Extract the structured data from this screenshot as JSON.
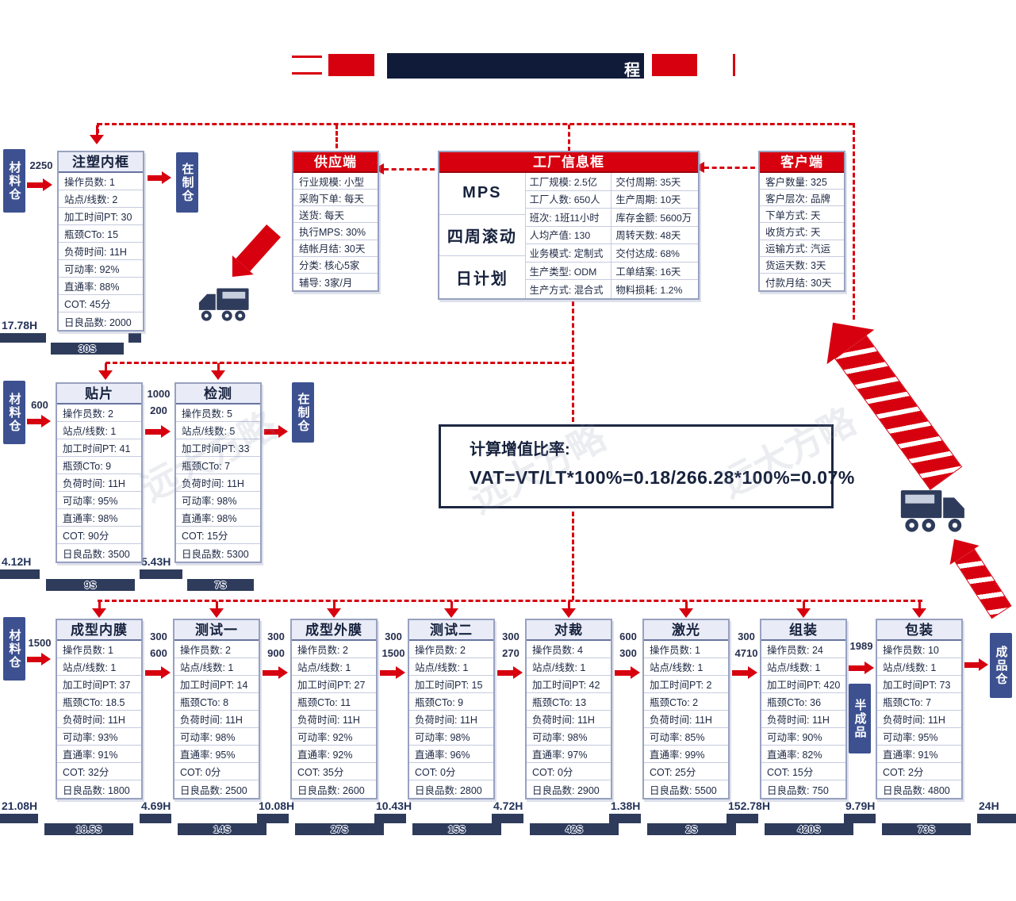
{
  "header": {
    "title_fragment": "程"
  },
  "watermark": "远大方略",
  "labels": {
    "material_store": "材料仓",
    "wip_store": "在制仓",
    "semi_finished": "半成品",
    "finished_store": "成品仓"
  },
  "supplier": {
    "title": "供应端",
    "rows": [
      "行业规模: 小型",
      "采购下单: 每天",
      "送货: 每天",
      "执行MPS: 30%",
      "结帐月结: 30天",
      "分类: 核心5家",
      "辅导: 3家/月"
    ]
  },
  "factory": {
    "title": "工厂信息框",
    "plan_cells": [
      "MPS",
      "四周滚动",
      "日计划"
    ],
    "col1": [
      "工厂规模: 2.5亿",
      "工厂人数: 650人",
      "班次: 1班11小时",
      "人均产值: 130",
      "业务模式: 定制式",
      "生产类型: ODM",
      "生产方式: 混合式"
    ],
    "col2": [
      "交付周期: 35天",
      "生产周期: 10天",
      "库存金额: 5600万",
      "周转天数: 48天",
      "交付达成: 68%",
      "工单结案: 16天",
      "物料损耗: 1.2%"
    ]
  },
  "customer": {
    "title": "客户端",
    "rows": [
      "客户数量: 325",
      "客户层次: 品牌",
      "下单方式: 天",
      "收货方式: 天",
      "运输方式: 汽运",
      "货运天数: 3天",
      "付款月结: 30天"
    ]
  },
  "processes": [
    {
      "key": "injection-inner-frame",
      "title": "注塑内框",
      "rows": [
        "操作员数: 1",
        "站点/线数: 2",
        "加工时间PT: 30",
        "瓶颈CTo: 15",
        "负荷时间: 11H",
        "可动率: 92%",
        "直通率: 88%",
        "COT: 45分",
        "日良品数: 2000"
      ]
    },
    {
      "key": "smt",
      "title": "贴片",
      "rows": [
        "操作员数: 2",
        "站点/线数: 1",
        "加工时间PT: 41",
        "瓶颈CTo: 9",
        "负荷时间: 11H",
        "可动率: 95%",
        "直通率: 98%",
        "COT: 90分",
        "日良品数: 3500"
      ]
    },
    {
      "key": "inspection",
      "title": "检测",
      "rows": [
        "操作员数: 5",
        "站点/线数: 5",
        "加工时间PT: 33",
        "瓶颈CTo: 7",
        "负荷时间: 11H",
        "可动率: 98%",
        "直通率: 98%",
        "COT: 15分",
        "日良品数: 5300"
      ]
    },
    {
      "key": "inner-molding",
      "title": "成型内膜",
      "rows": [
        "操作员数: 1",
        "站点/线数: 1",
        "加工时间PT: 37",
        "瓶颈CTo: 18.5",
        "负荷时间: 11H",
        "可动率: 93%",
        "直通率: 91%",
        "COT: 32分",
        "日良品数: 1800"
      ]
    },
    {
      "key": "test-1",
      "title": "测试一",
      "rows": [
        "操作员数: 2",
        "站点/线数: 1",
        "加工时间PT: 14",
        "瓶颈CTo: 8",
        "负荷时间: 11H",
        "可动率: 98%",
        "直通率: 95%",
        "COT: 0分",
        "日良品数: 2500"
      ]
    },
    {
      "key": "outer-molding",
      "title": "成型外膜",
      "rows": [
        "操作员数: 2",
        "站点/线数: 1",
        "加工时间PT: 27",
        "瓶颈CTo: 11",
        "负荷时间: 11H",
        "可动率: 92%",
        "直通率: 92%",
        "COT: 35分",
        "日良品数: 2600"
      ]
    },
    {
      "key": "test-2",
      "title": "测试二",
      "rows": [
        "操作员数: 2",
        "站点/线数: 1",
        "加工时间PT: 15",
        "瓶颈CTo: 9",
        "负荷时间: 11H",
        "可动率: 98%",
        "直通率: 96%",
        "COT: 0分",
        "日良品数: 2800"
      ]
    },
    {
      "key": "cutting",
      "title": "对裁",
      "rows": [
        "操作员数: 4",
        "站点/线数: 1",
        "加工时间PT: 42",
        "瓶颈CTo: 13",
        "负荷时间: 11H",
        "可动率: 98%",
        "直通率: 97%",
        "COT: 0分",
        "日良品数: 2900"
      ]
    },
    {
      "key": "laser",
      "title": "激光",
      "rows": [
        "操作员数: 1",
        "站点/线数: 1",
        "加工时间PT: 2",
        "瓶颈CTo: 2",
        "负荷时间: 11H",
        "可动率: 85%",
        "直通率: 99%",
        "COT: 25分",
        "日良品数: 5500"
      ]
    },
    {
      "key": "assembly",
      "title": "组装",
      "rows": [
        "操作员数: 24",
        "站点/线数: 1",
        "加工时间PT: 420",
        "瓶颈CTo: 36",
        "负荷时间: 11H",
        "可动率: 90%",
        "直通率: 82%",
        "COT: 15分",
        "日良品数: 750"
      ]
    },
    {
      "key": "packing",
      "title": "包装",
      "rows": [
        "操作员数: 10",
        "站点/线数: 1",
        "加工时间PT: 73",
        "瓶颈CTo: 7",
        "负荷时间: 11H",
        "可动率: 95%",
        "直通率: 91%",
        "COT: 2分",
        "日良品数: 4800"
      ]
    }
  ],
  "inventory": {
    "to_injection": [
      "2250"
    ],
    "to_smt": [
      "600"
    ],
    "smt_to_inspection": [
      "1000",
      "200"
    ],
    "to_inner_molding": [
      "1500"
    ],
    "inner_to_test1": [
      "300",
      "600"
    ],
    "test1_to_outer": [
      "300",
      "900"
    ],
    "outer_to_test2": [
      "300",
      "1500"
    ],
    "test2_to_cut": [
      "300",
      "270"
    ],
    "cut_to_laser": [
      "600",
      "300"
    ],
    "laser_to_assembly": [
      "300",
      "4710"
    ],
    "assembly_to_packing": [
      "1989"
    ]
  },
  "vat_note": {
    "line1": "计算增值比率:",
    "line2": "VAT=VT/LT*100%=0.18/266.28*100%=0.07%"
  },
  "timelines": {
    "row1": [
      "17.78H",
      "30S"
    ],
    "row2": [
      "4.12H",
      "9S",
      "5.43H",
      "7S"
    ],
    "row3": [
      "21.08H",
      "18.5S",
      "4.69H",
      "14S",
      "10.08H",
      "27S",
      "10.43H",
      "15S",
      "4.72H",
      "42S",
      "1.38H",
      "2S",
      "152.78H",
      "420S",
      "9.79H",
      "73S",
      "24H"
    ]
  },
  "colors": {
    "red": "#d7000f",
    "navy": "#16213c",
    "store_blue": "#3d5191",
    "timeline": "#2e3b5b"
  }
}
